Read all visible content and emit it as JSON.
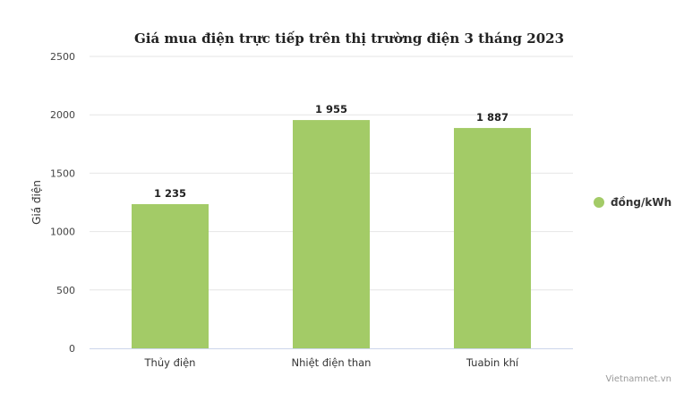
{
  "chart_data": {
    "type": "bar",
    "title": "Giá mua điện trực tiếp trên thị trường điện 3 tháng 2023",
    "ylabel": "Giá điện",
    "xlabel": "",
    "categories": [
      "Thủy điện",
      "Nhiệt điện than",
      "Tuabin khí"
    ],
    "series": [
      {
        "name": "đồng/kWh",
        "values": [
          1235,
          1955,
          1887
        ],
        "labels": [
          "1 235",
          "1 955",
          "1 887"
        ]
      }
    ],
    "ylim": [
      0,
      2500
    ],
    "yticks": [
      0,
      500,
      1000,
      1500,
      2000,
      2500
    ],
    "grid": true,
    "legend_position": "right",
    "bar_color": "#a3cb67",
    "grid_color": "#e6e6e6",
    "axis_color": "#ccd6eb"
  },
  "credit": "Vietnamnet.vn"
}
